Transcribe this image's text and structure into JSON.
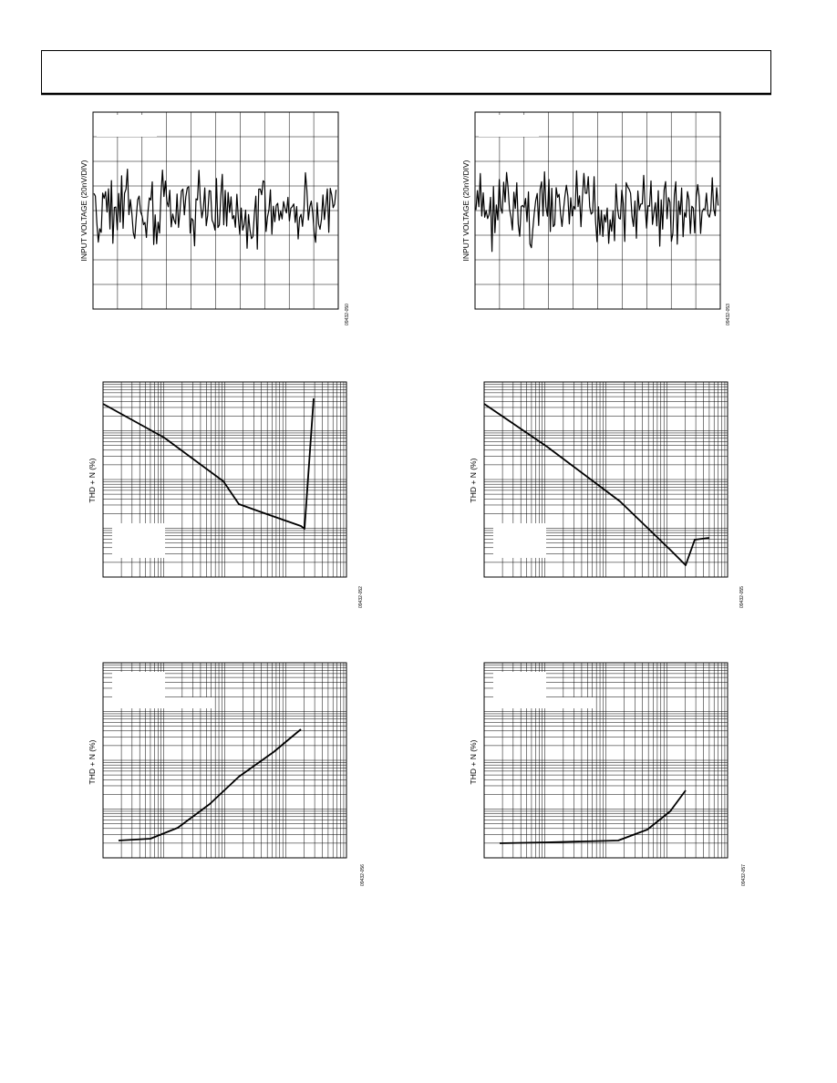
{
  "charts": [
    {
      "y_label": "INPUT VOLTAGE (20nV/DIV)",
      "code": "09432-050"
    },
    {
      "y_label": "INPUT VOLTAGE (20nV/DIV)",
      "code": "09432-053"
    },
    {
      "y_label": "THD + N (%)",
      "code": "09432-052"
    },
    {
      "y_label": "THD + N (%)",
      "code": "09432-055"
    },
    {
      "y_label": "THD + N (%)",
      "code": "09432-056"
    },
    {
      "y_label": "THD + N (%)",
      "code": "09432-057"
    }
  ]
}
